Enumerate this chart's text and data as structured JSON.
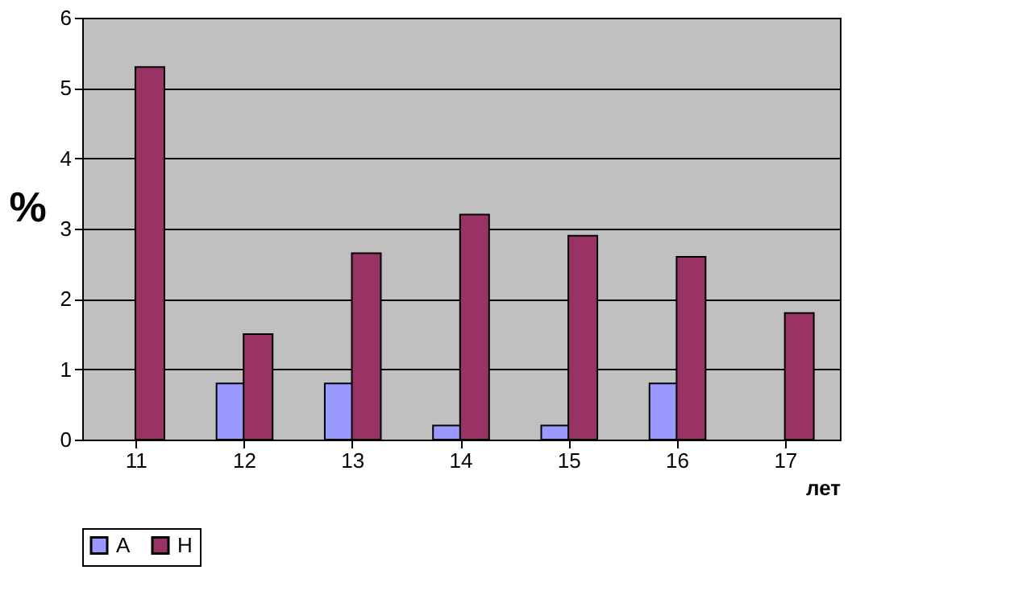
{
  "chart_data": {
    "type": "bar",
    "ylabel": "%",
    "xlabel": "лет",
    "categories": [
      "11",
      "12",
      "13",
      "14",
      "15",
      "16",
      "17"
    ],
    "series": [
      {
        "name": "А",
        "color": "#9999ff",
        "values": [
          0,
          0.8,
          0.8,
          0.2,
          0.2,
          0.8,
          0
        ]
      },
      {
        "name": "Н",
        "color": "#993366",
        "values": [
          5.3,
          1.5,
          2.65,
          3.2,
          2.9,
          2.6,
          1.8
        ]
      }
    ],
    "ylim": [
      0,
      6
    ],
    "yticks": [
      0,
      1,
      2,
      3,
      4,
      5,
      6
    ],
    "grid": "y",
    "legend": "bottom"
  }
}
